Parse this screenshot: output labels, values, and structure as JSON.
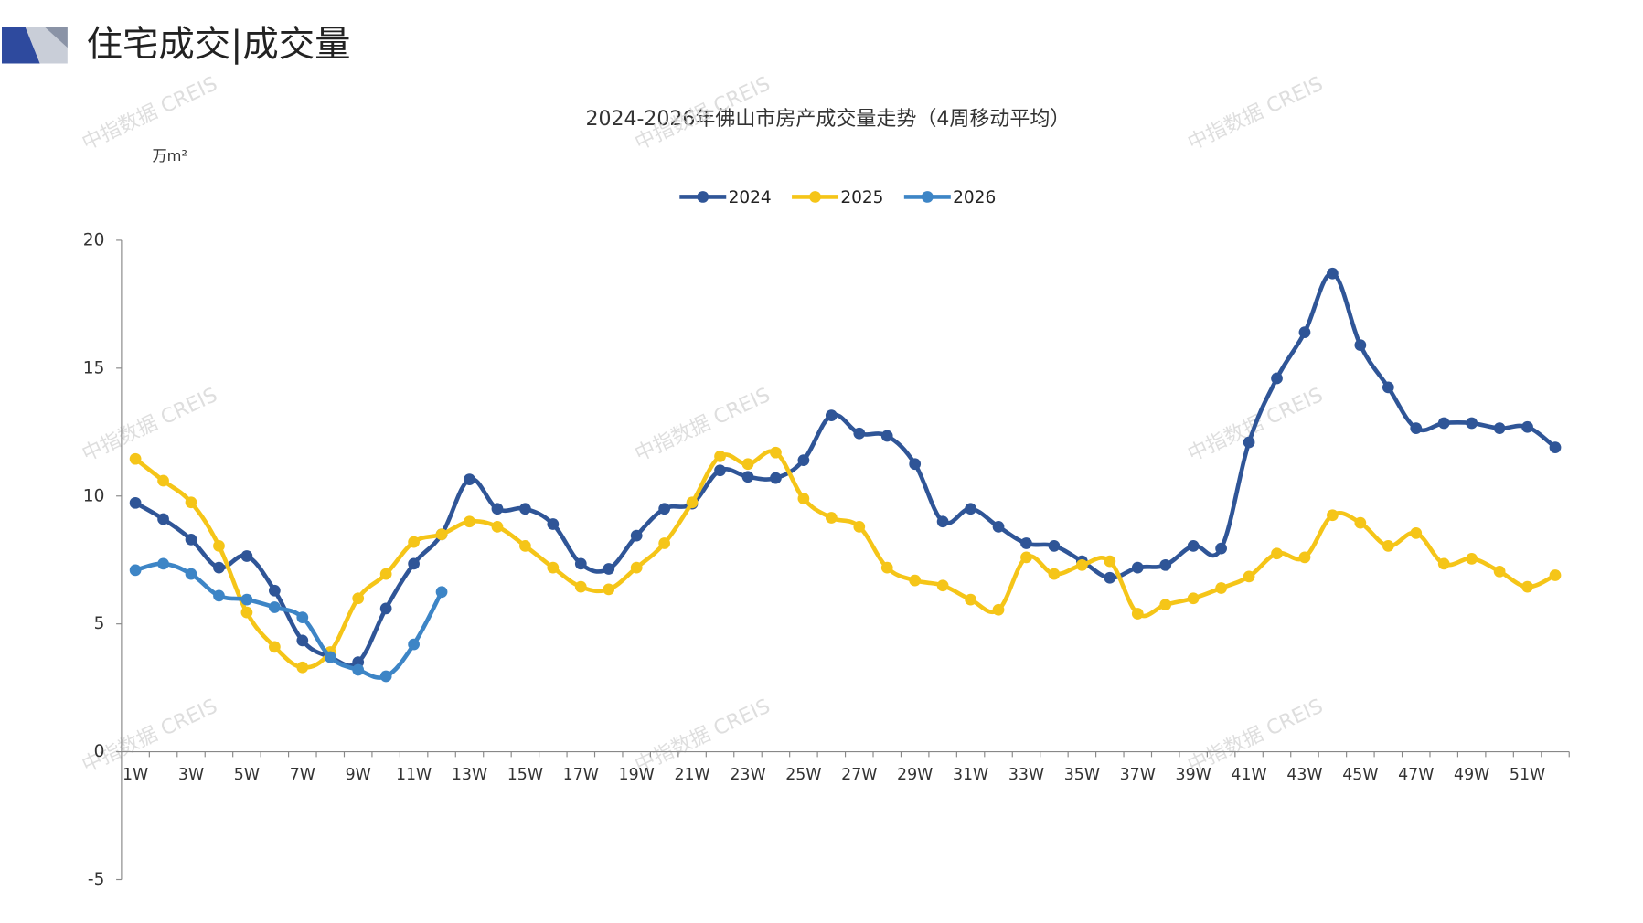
{
  "header": {
    "title": "住宅成交|成交量"
  },
  "watermark": "中指数据 CREIS",
  "chart_data": {
    "type": "line",
    "title": "2024-2026年佛山市房产成交量走势（4周移动平均）",
    "unit": "万m²",
    "categories": [
      "1W",
      null,
      "3W",
      null,
      "5W",
      null,
      "7W",
      null,
      "9W",
      null,
      "11W",
      null,
      "13W",
      null,
      "15W",
      null,
      "17W",
      null,
      "19W",
      null,
      "21W",
      null,
      "23W",
      null,
      "25W",
      null,
      "27W",
      null,
      "29W",
      null,
      "31W",
      null,
      "33W",
      null,
      "35W",
      null,
      "37W",
      null,
      "39W",
      null,
      "41W",
      null,
      "43W",
      null,
      "45W",
      null,
      "47W",
      null,
      "49W",
      null,
      "51W",
      null
    ],
    "series": [
      {
        "name": "2024",
        "color": "#2f5597",
        "values": [
          9.73,
          9.1,
          8.3,
          7.2,
          7.65,
          6.3,
          4.35,
          3.7,
          3.5,
          5.6,
          7.35,
          8.5,
          10.65,
          9.5,
          9.5,
          8.9,
          7.35,
          7.15,
          8.45,
          9.5,
          9.7,
          11.0,
          10.75,
          10.7,
          11.4,
          13.15,
          12.45,
          12.35,
          11.25,
          9.0,
          9.5,
          8.8,
          8.15,
          8.05,
          7.45,
          6.8,
          7.2,
          7.3,
          8.05,
          7.95,
          12.1,
          14.6,
          16.4,
          18.7,
          15.9,
          14.25,
          12.65,
          12.85,
          12.85,
          12.65,
          12.7,
          11.9
        ]
      },
      {
        "name": "2025",
        "color": "#f5c518",
        "values": [
          11.45,
          10.6,
          9.75,
          8.05,
          5.45,
          4.1,
          3.3,
          3.9,
          6.0,
          6.95,
          8.2,
          8.5,
          9.0,
          8.8,
          8.05,
          7.2,
          6.45,
          6.35,
          7.2,
          8.15,
          9.75,
          11.55,
          11.25,
          11.7,
          9.9,
          9.15,
          8.8,
          7.2,
          6.7,
          6.5,
          5.95,
          5.55,
          7.6,
          6.95,
          7.3,
          7.45,
          5.4,
          5.75,
          6.0,
          6.4,
          6.85,
          7.75,
          7.6,
          9.25,
          8.95,
          8.05,
          8.55,
          7.35,
          7.55,
          7.05,
          6.45,
          6.9
        ]
      },
      {
        "name": "2026",
        "color": "#3d85c6",
        "values": [
          7.1,
          7.35,
          6.95,
          6.1,
          5.95,
          5.65,
          5.25,
          3.7,
          3.2,
          2.95,
          4.2,
          6.25,
          null,
          null,
          null,
          null,
          null,
          null,
          null,
          null,
          null,
          null,
          null,
          null,
          null,
          null,
          null,
          null,
          null,
          null,
          null,
          null,
          null,
          null,
          null,
          null,
          null,
          null,
          null,
          null,
          null,
          null,
          null,
          null,
          null,
          null,
          null,
          null,
          null,
          null,
          null,
          null
        ]
      }
    ],
    "ylim": [
      -5,
      20
    ],
    "yticks": [
      -5,
      0,
      5,
      10,
      15,
      20
    ],
    "legend": "top"
  }
}
